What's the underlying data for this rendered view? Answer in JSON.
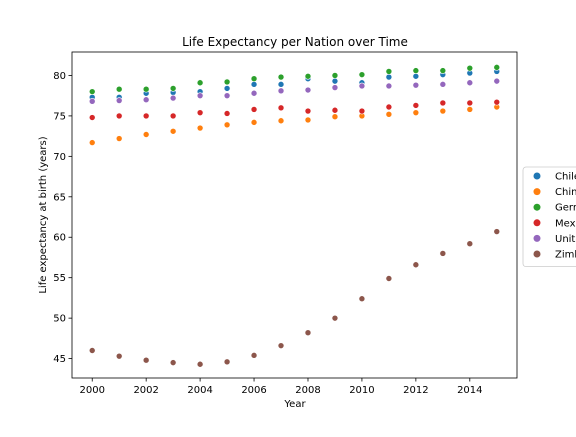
{
  "chart_data": {
    "type": "scatter",
    "title": "Life Expectancy per Nation over Time",
    "xlabel": "Year",
    "ylabel": "Life expectancy at birth (years)",
    "xlim": [
      1999.25,
      2015.75
    ],
    "ylim": [
      42.6,
      82.9
    ],
    "xticks": [
      2000,
      2002,
      2004,
      2006,
      2008,
      2010,
      2012,
      2014
    ],
    "yticks": [
      45,
      50,
      55,
      60,
      65,
      70,
      75,
      80
    ],
    "grid": false,
    "legend_position": "right",
    "x": [
      2000,
      2001,
      2002,
      2003,
      2004,
      2005,
      2006,
      2007,
      2008,
      2009,
      2010,
      2011,
      2012,
      2013,
      2014,
      2015
    ],
    "series": [
      {
        "name": "Chile",
        "color": "#1f77b4",
        "values": [
          77.3,
          77.3,
          77.8,
          77.9,
          78.0,
          78.4,
          78.9,
          78.9,
          79.6,
          79.3,
          79.1,
          79.8,
          79.9,
          80.1,
          80.3,
          80.5
        ]
      },
      {
        "name": "China",
        "color": "#ff7f0e",
        "values": [
          71.7,
          72.2,
          72.7,
          73.1,
          73.5,
          73.9,
          74.2,
          74.4,
          74.5,
          74.9,
          75.0,
          75.2,
          75.4,
          75.6,
          75.8,
          76.1
        ]
      },
      {
        "name": "Germany",
        "color": "#2ca02c",
        "values": [
          78.0,
          78.3,
          78.3,
          78.4,
          79.1,
          79.2,
          79.6,
          79.8,
          79.9,
          80.0,
          80.1,
          80.5,
          80.6,
          80.6,
          80.9,
          81.0
        ]
      },
      {
        "name": "Mexico",
        "color": "#d62728",
        "values": [
          74.8,
          75.0,
          75.0,
          75.0,
          75.4,
          75.3,
          75.8,
          76.0,
          75.6,
          75.7,
          75.6,
          76.1,
          76.3,
          76.6,
          76.6,
          76.7
        ]
      },
      {
        "name": "United States of America",
        "color": "#9467bd",
        "values": [
          76.8,
          76.9,
          77.0,
          77.2,
          77.5,
          77.5,
          77.8,
          78.1,
          78.2,
          78.5,
          78.7,
          78.7,
          78.8,
          78.9,
          79.1,
          79.3
        ]
      },
      {
        "name": "Zimbabwe",
        "color": "#8c564b",
        "values": [
          46.0,
          45.3,
          44.8,
          44.5,
          44.3,
          44.6,
          45.4,
          46.6,
          48.2,
          50.0,
          52.4,
          54.9,
          56.6,
          58.0,
          59.2,
          60.7
        ]
      }
    ]
  }
}
